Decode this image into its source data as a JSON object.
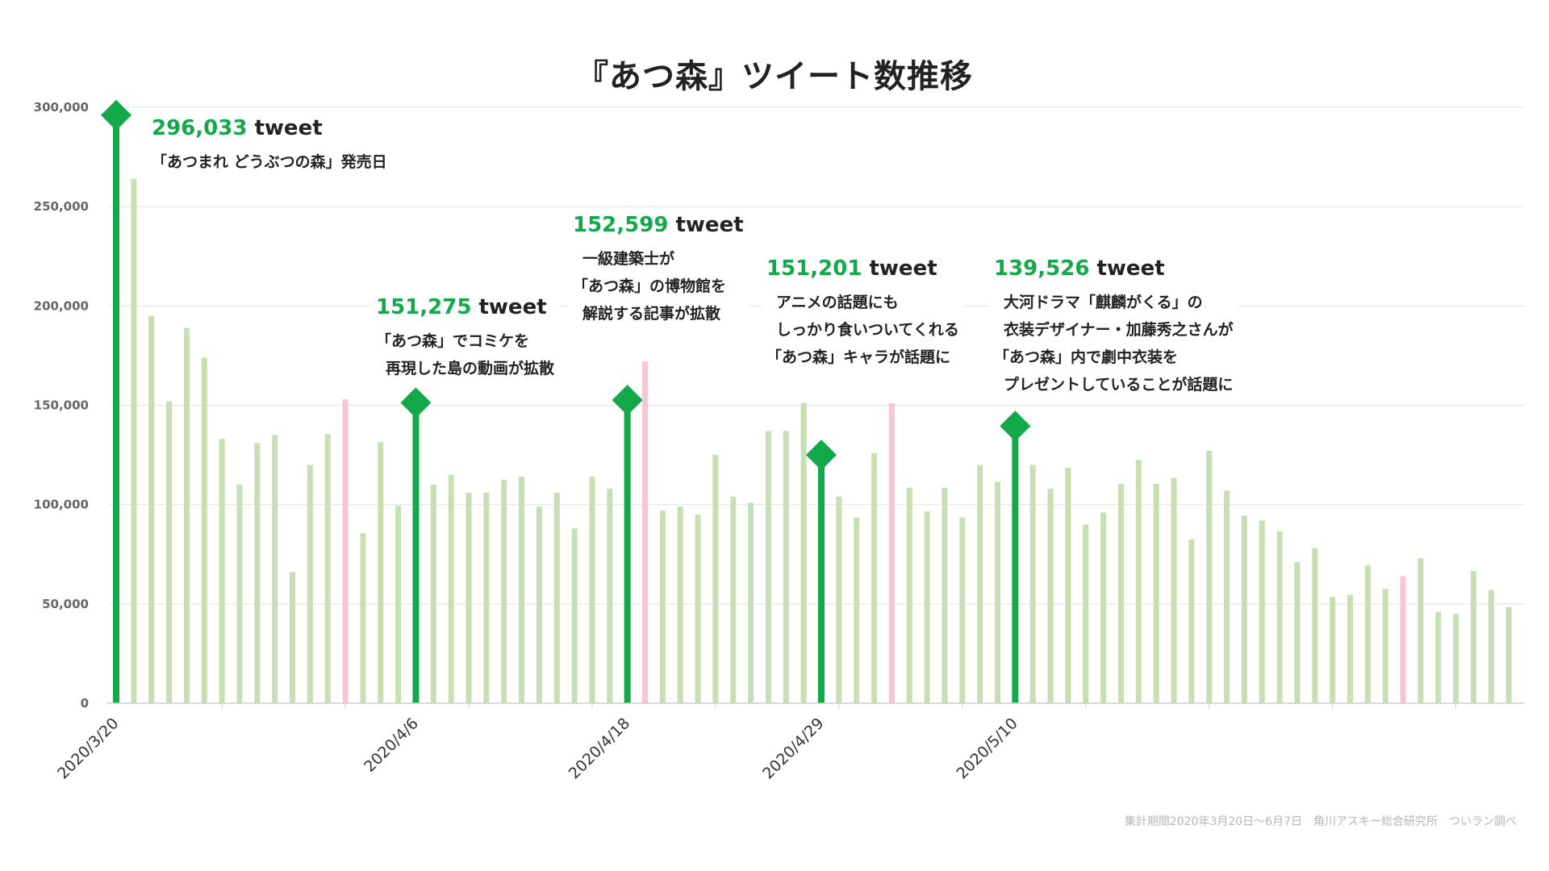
{
  "title": "『あつ森』ツイート数推移",
  "source": "集計期間2020年3月20日～6月7日　角川アスキー総合研究所　ついラン調べ",
  "colors": {
    "highlight": "#13a849",
    "normal": "#c6e0b3",
    "sunday": "#f7c6d4",
    "grid": "#e3e3e3",
    "axis": "#cfcfcf"
  },
  "chart_data": {
    "type": "bar",
    "title": "『あつ森』ツイート数推移",
    "ylim": [
      0,
      300000
    ],
    "yticks": [
      "0",
      "50,000",
      "100,000",
      "150,000",
      "200,000",
      "250,000",
      "300,000"
    ],
    "grid": true,
    "x_date_labels": [
      "2020/3/20",
      "2020/4/6",
      "2020/4/18",
      "2020/4/29",
      "2020/5/10"
    ],
    "start_date": "2020/3/20",
    "end_date": "2020/6/7",
    "series": [
      {
        "values": [
          296033,
          264000,
          195000,
          152000,
          189000,
          174000,
          133000,
          110000,
          131000,
          135000,
          66000,
          120000,
          135500,
          153000,
          85500,
          131500,
          99500,
          151275,
          110000,
          115000,
          106000,
          106000,
          112500,
          114000,
          99000,
          106000,
          88000,
          114000,
          108000,
          152599,
          172000,
          97000,
          99000,
          95000,
          125000,
          104000,
          101000,
          137000,
          137000,
          151201,
          125000,
          104000,
          93500,
          126000,
          151000,
          108500,
          96500,
          108500,
          93500,
          120000,
          111500,
          139526,
          120000,
          108000,
          118500,
          90000,
          96000,
          110500,
          122500,
          110500,
          113500,
          82500,
          127000,
          107000,
          94500,
          92000,
          86500,
          71000,
          78000,
          53500,
          54500,
          69500,
          57500,
          64000,
          73000,
          46000,
          45000,
          66500,
          57000,
          48500
        ],
        "highlight_days": [
          "2020/3/20",
          "2020/4/6",
          "2020/4/18",
          "2020/4/29",
          "2020/5/10"
        ],
        "sunday_days": [
          "2020/4/2",
          "2020/4/19",
          "2020/5/3",
          "2020/6/1"
        ]
      }
    ],
    "annotations": [
      {
        "value": "296,033",
        "unit": "tweet",
        "lines": [
          "「あつまれ どうぶつの森」発売日"
        ]
      },
      {
        "value": "151,275",
        "unit": "tweet",
        "lines": [
          "「あつ森」でコミケを",
          "再現した島の動画が拡散"
        ]
      },
      {
        "value": "152,599",
        "unit": "tweet",
        "lines": [
          "一級建築士が",
          "「あつ森」の博物館を",
          "解説する記事が拡散"
        ]
      },
      {
        "value": "151,201",
        "unit": "tweet",
        "lines": [
          "アニメの話題にも",
          "しっかり食いついてくれる",
          "「あつ森」キャラが話題に"
        ]
      },
      {
        "value": "139,526",
        "unit": "tweet",
        "lines": [
          "大河ドラマ「麒麟がくる」の",
          "衣装デザイナー・加藤秀之さんが",
          "「あつ森」内で劇中衣装を",
          "プレゼントしていることが話題に"
        ]
      }
    ]
  }
}
